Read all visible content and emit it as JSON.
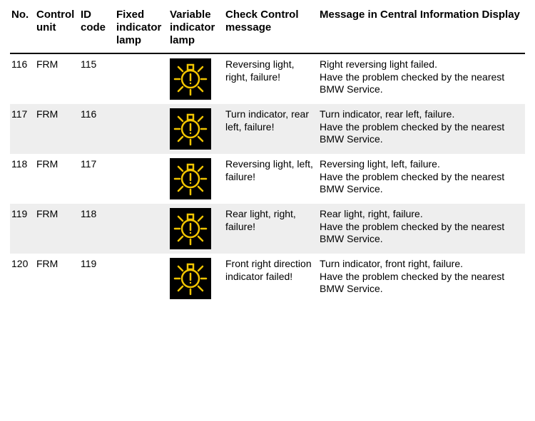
{
  "columns": {
    "no": "No.",
    "control_unit": "Control unit",
    "id_code": "ID code",
    "fixed_lamp": "Fixed indicator lamp",
    "variable_lamp": "Variable indicator lamp",
    "check_control": "Check Control message",
    "cid_message": "Message in Central Information Display"
  },
  "icon": {
    "name": "bulb-warning-icon",
    "bg_color": "#000000",
    "stroke_color": "#f2c500",
    "stroke_width": 2.5
  },
  "rows": [
    {
      "no": "116",
      "control_unit": "FRM",
      "id_code": "115",
      "fixed_lamp": "",
      "check_control": "Reversing light, right, failure!",
      "cid_message": "Right reversing light failed.\nHave the problem checked by the nearest BMW Service.",
      "alt": false
    },
    {
      "no": "117",
      "control_unit": "FRM",
      "id_code": "116",
      "fixed_lamp": "",
      "check_control": "Turn indicator, rear left, failure!",
      "cid_message": "Turn indicator, rear left, failure.\nHave the problem checked by the nearest BMW Service.",
      "alt": true
    },
    {
      "no": "118",
      "control_unit": "FRM",
      "id_code": "117",
      "fixed_lamp": "",
      "check_control": "Reversing light, left, failure!",
      "cid_message": "Reversing light, left, failure.\nHave the problem checked by the nearest BMW Service.",
      "alt": false
    },
    {
      "no": "119",
      "control_unit": "FRM",
      "id_code": "118",
      "fixed_lamp": "",
      "check_control": "Rear light, right, failure!",
      "cid_message": "Rear light, right, failure.\nHave the problem checked by the nearest BMW Service.",
      "alt": true
    },
    {
      "no": "120",
      "control_unit": "FRM",
      "id_code": "119",
      "fixed_lamp": "",
      "check_control": "Front right direction indicator failed!",
      "cid_message": "Turn indicator, front right, failure.\nHave the problem checked by the nearest BMW Service.",
      "alt": false
    }
  ]
}
